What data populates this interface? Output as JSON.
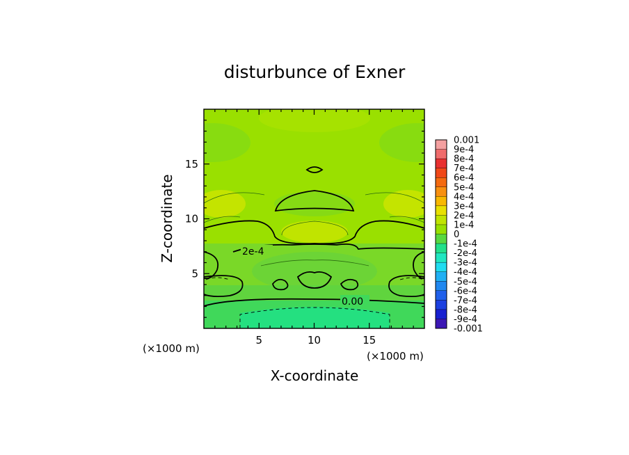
{
  "chart_data": {
    "type": "heatmap",
    "title": "disturbunce of Exner",
    "xlabel": "X-coordinate",
    "ylabel": "Z-coordinate",
    "x_unit": "(×1000 m)",
    "z_unit": "(×1000 m)",
    "xlim": [
      0,
      20
    ],
    "ylim": [
      0,
      20
    ],
    "x_ticks": [
      5,
      10,
      15
    ],
    "y_ticks": [
      5,
      10,
      15
    ],
    "colorbar": {
      "labels": [
        "0.001",
        "9e-4",
        "8e-4",
        "7e-4",
        "6e-4",
        "5e-4",
        "4e-4",
        "3e-4",
        "2e-4",
        "1e-4",
        "0",
        "-1e-4",
        "-2e-4",
        "-3e-4",
        "-4e-4",
        "-5e-4",
        "-6e-4",
        "-7e-4",
        "-8e-4",
        "-9e-4",
        "-0.001"
      ],
      "colors": [
        "#f4a0a0",
        "#f06c6c",
        "#e83030",
        "#f04818",
        "#f46a10",
        "#f89010",
        "#f8b800",
        "#e8e000",
        "#c0e400",
        "#98e000",
        "#58d840",
        "#22e08a",
        "#20e6c0",
        "#20dcf0",
        "#20b0f4",
        "#2088f0",
        "#2060ea",
        "#1c40e0",
        "#1820d0",
        "#3c18b4"
      ]
    },
    "contour_labels": [
      "2e-4",
      "0.00"
    ],
    "field_range": [
      -0.0001,
      0.0004
    ]
  }
}
